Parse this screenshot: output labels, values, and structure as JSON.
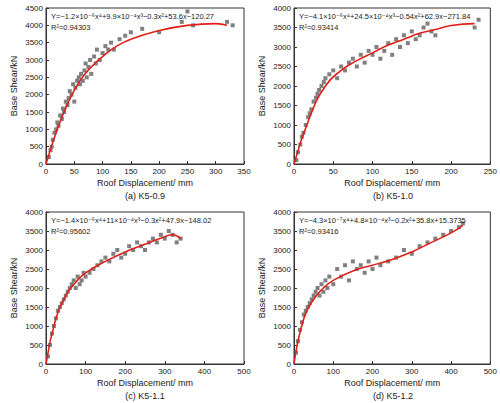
{
  "chart_data": [
    {
      "type": "scatter",
      "title": "(a) K5-0.9",
      "xlabel": "Roof Displacement/ mm",
      "ylabel": "Base Shear/kN",
      "annotations": [
        "Y=−1.2×10⁻⁶x⁴+9.9×10⁻⁴x³−0.3x²+53.6x−120.27",
        "R²=0.94303"
      ],
      "xlim": [
        0,
        350
      ],
      "xticks": [
        0,
        50,
        100,
        150,
        200,
        250,
        300,
        350
      ],
      "ylim": [
        0,
        4500
      ],
      "yticks": [
        0,
        500,
        1000,
        1500,
        2000,
        2500,
        3000,
        3500,
        4000,
        4500
      ],
      "grid": false,
      "series": [
        {
          "type": "scatter",
          "marker": "square",
          "color": "#555555",
          "x": [
            5,
            8,
            10,
            12,
            15,
            18,
            20,
            22,
            25,
            28,
            30,
            32,
            35,
            38,
            40,
            42,
            45,
            48,
            50,
            52,
            55,
            58,
            60,
            62,
            65,
            68,
            70,
            72,
            75,
            78,
            80,
            85,
            88,
            90,
            95,
            100,
            105,
            110,
            115,
            120,
            130,
            140,
            150,
            170,
            200,
            240,
            250,
            260,
            320,
            330
          ],
          "values": [
            200,
            400,
            500,
            700,
            900,
            1000,
            1200,
            1100,
            1400,
            1300,
            1600,
            1500,
            1800,
            1700,
            1900,
            2100,
            2000,
            2300,
            1800,
            2200,
            2400,
            2500,
            2300,
            2600,
            2400,
            2700,
            2900,
            2500,
            2800,
            3000,
            2600,
            3100,
            2900,
            3300,
            3000,
            3200,
            3400,
            3300,
            3500,
            3300,
            3600,
            3700,
            3800,
            3900,
            3800,
            4100,
            4400,
            4000,
            4100,
            4000
          ]
        },
        {
          "type": "line",
          "line_style": "solid",
          "color": "#e0201b",
          "x": [
            0,
            20,
            40,
            60,
            80,
            100,
            125,
            150,
            200,
            250,
            300,
            320
          ],
          "values": [
            0,
            1000,
            1800,
            2400,
            2800,
            3100,
            3400,
            3600,
            3850,
            4000,
            4050,
            4000
          ]
        }
      ]
    },
    {
      "type": "scatter",
      "title": "(b) K5-1.0",
      "xlabel": "Roof Displacement/ mm",
      "ylabel": "Base Shear/kN",
      "annotations": [
        "Y=−4.1×10⁻⁶x⁴+24.5×10⁻⁴x³−0.54x²+62.9x−271.84",
        "R²=0.93414"
      ],
      "xlim": [
        0,
        250
      ],
      "xticks": [
        0,
        50,
        100,
        150,
        200,
        250
      ],
      "ylim": [
        0,
        4000
      ],
      "yticks": [
        0,
        500,
        1000,
        1500,
        2000,
        2500,
        3000,
        3500,
        4000
      ],
      "grid": false,
      "series": [
        {
          "type": "scatter",
          "marker": "square",
          "color": "#555555",
          "x": [
            3,
            5,
            8,
            10,
            12,
            15,
            18,
            20,
            22,
            25,
            28,
            30,
            32,
            35,
            38,
            40,
            45,
            50,
            55,
            60,
            65,
            70,
            75,
            80,
            85,
            90,
            95,
            100,
            105,
            110,
            115,
            120,
            125,
            130,
            135,
            140,
            145,
            150,
            155,
            160,
            165,
            170,
            175,
            180,
            230,
            235
          ],
          "values": [
            100,
            300,
            500,
            700,
            800,
            1000,
            1200,
            1300,
            1400,
            1600,
            1700,
            1800,
            1900,
            2000,
            2100,
            2200,
            2300,
            2400,
            2200,
            2500,
            2400,
            2600,
            2700,
            2500,
            2800,
            2600,
            2900,
            2800,
            3000,
            2700,
            2900,
            3100,
            2800,
            3200,
            3000,
            3300,
            3100,
            3400,
            3200,
            3300,
            3500,
            3600,
            3400,
            3300,
            3500,
            3700
          ]
        },
        {
          "type": "line",
          "line_style": "solid",
          "color": "#e0201b",
          "x": [
            0,
            20,
            40,
            60,
            80,
            100,
            120,
            140,
            160,
            180,
            200,
            230
          ],
          "values": [
            0,
            1200,
            2000,
            2400,
            2650,
            2850,
            3050,
            3200,
            3350,
            3450,
            3550,
            3600
          ]
        }
      ]
    },
    {
      "type": "scatter",
      "title": "(c) K5-1.1",
      "xlabel": "Roof Displacement/ mm",
      "ylabel": "Base Shear/kN",
      "annotations": [
        "Y=−1.4×10⁻⁶x⁴+11×10⁻⁴x³−0.3x²+47.9x−148.02",
        "R²=0.95602"
      ],
      "xlim": [
        0,
        500
      ],
      "xticks": [
        0,
        100,
        200,
        300,
        400,
        500
      ],
      "ylim": [
        0,
        4000
      ],
      "yticks": [
        0,
        500,
        1000,
        1500,
        2000,
        2500,
        3000,
        3500,
        4000
      ],
      "grid": false,
      "series": [
        {
          "type": "scatter",
          "marker": "square",
          "color": "#555555",
          "x": [
            5,
            10,
            15,
            20,
            25,
            30,
            35,
            40,
            45,
            50,
            55,
            60,
            65,
            70,
            75,
            80,
            85,
            90,
            95,
            100,
            110,
            120,
            130,
            140,
            150,
            160,
            170,
            180,
            190,
            200,
            210,
            220,
            230,
            240,
            250,
            260,
            270,
            280,
            290,
            300,
            310,
            320,
            330,
            340
          ],
          "values": [
            200,
            500,
            800,
            1000,
            1200,
            1400,
            1500,
            1600,
            1700,
            1800,
            1900,
            2000,
            2100,
            2200,
            2000,
            2300,
            2100,
            2200,
            2400,
            2300,
            2400,
            2500,
            2600,
            2700,
            2800,
            2700,
            2900,
            3000,
            2800,
            2900,
            3100,
            3000,
            3200,
            3100,
            3000,
            3200,
            3300,
            3200,
            3400,
            3300,
            3500,
            3400,
            3200,
            3300
          ]
        },
        {
          "type": "line",
          "line_style": "solid",
          "color": "#e0201b",
          "x": [
            0,
            25,
            50,
            75,
            100,
            150,
            200,
            250,
            300,
            320,
            340
          ],
          "values": [
            0,
            1200,
            1800,
            2150,
            2400,
            2700,
            2950,
            3150,
            3350,
            3400,
            3300
          ]
        }
      ]
    },
    {
      "type": "scatter",
      "title": "(d) K5-1.2",
      "xlabel": "Roof Displacement/ mm",
      "ylabel": "Base Shear/kN",
      "annotations": [
        "Y=−4.3×10⁻⁷x⁴+4.8×10⁻⁴x³−0.2x²+35.8x+15.3735",
        "R²=0.93416"
      ],
      "xlim": [
        0,
        500
      ],
      "xticks": [
        0,
        100,
        200,
        300,
        400,
        500
      ],
      "ylim": [
        0,
        4000
      ],
      "yticks": [
        0,
        500,
        1000,
        1500,
        2000,
        2500,
        3000,
        3500,
        4000
      ],
      "grid": false,
      "series": [
        {
          "type": "scatter",
          "marker": "square",
          "color": "#555555",
          "x": [
            5,
            10,
            15,
            20,
            25,
            30,
            35,
            40,
            45,
            50,
            55,
            60,
            65,
            70,
            75,
            80,
            85,
            90,
            100,
            110,
            120,
            130,
            140,
            150,
            160,
            170,
            180,
            190,
            200,
            210,
            220,
            240,
            260,
            280,
            300,
            320,
            340,
            360,
            380,
            400,
            420,
            430
          ],
          "values": [
            300,
            600,
            900,
            1100,
            1300,
            1400,
            1500,
            1600,
            1700,
            1800,
            1900,
            2000,
            1800,
            2100,
            1900,
            2200,
            2000,
            2300,
            2100,
            2500,
            2300,
            2600,
            2200,
            2700,
            2500,
            2600,
            2400,
            2700,
            2500,
            2800,
            2600,
            2700,
            2800,
            3000,
            2900,
            3100,
            3200,
            3300,
            3400,
            3500,
            3600,
            3700
          ]
        },
        {
          "type": "line",
          "line_style": "solid",
          "color": "#e0201b",
          "x": [
            0,
            25,
            50,
            75,
            100,
            150,
            200,
            250,
            300,
            350,
            400,
            430
          ],
          "values": [
            0,
            1200,
            1700,
            2000,
            2200,
            2450,
            2600,
            2750,
            2950,
            3200,
            3450,
            3650
          ]
        }
      ]
    }
  ]
}
